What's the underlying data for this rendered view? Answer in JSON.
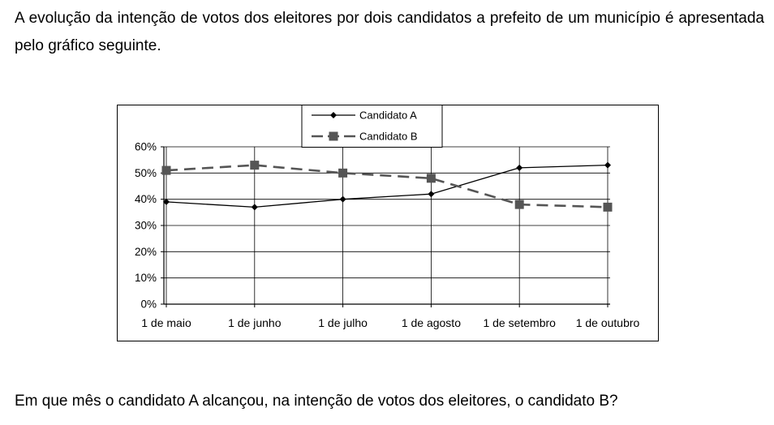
{
  "intro_text": "A evolução da intenção de votos dos eleitores por dois candidatos a prefeito de um município é apresentada pelo gráfico seguinte.",
  "question_text": "Em que mês o candidato A alcançou, na intenção de votos dos eleitores, o candidato B?",
  "chart_data": {
    "type": "line",
    "title": "",
    "xlabel": "",
    "ylabel": "",
    "categories": [
      "1 de maio",
      "1 de junho",
      "1 de julho",
      "1 de agosto",
      "1 de setembro",
      "1 de outubro"
    ],
    "y_ticks": [
      "0%",
      "10%",
      "20%",
      "30%",
      "40%",
      "50%",
      "60%"
    ],
    "ylim": [
      0,
      60
    ],
    "grid": true,
    "legend_position": "top-center",
    "series": [
      {
        "name": "Candidato A",
        "values": [
          39,
          37,
          40,
          42,
          52,
          53
        ],
        "color": "#000000",
        "marker": "diamond",
        "line_style": "solid"
      },
      {
        "name": "Candidato B",
        "values": [
          51,
          53,
          50,
          48,
          38,
          37
        ],
        "color": "#555555",
        "marker": "square",
        "line_style": "dashed"
      }
    ]
  }
}
